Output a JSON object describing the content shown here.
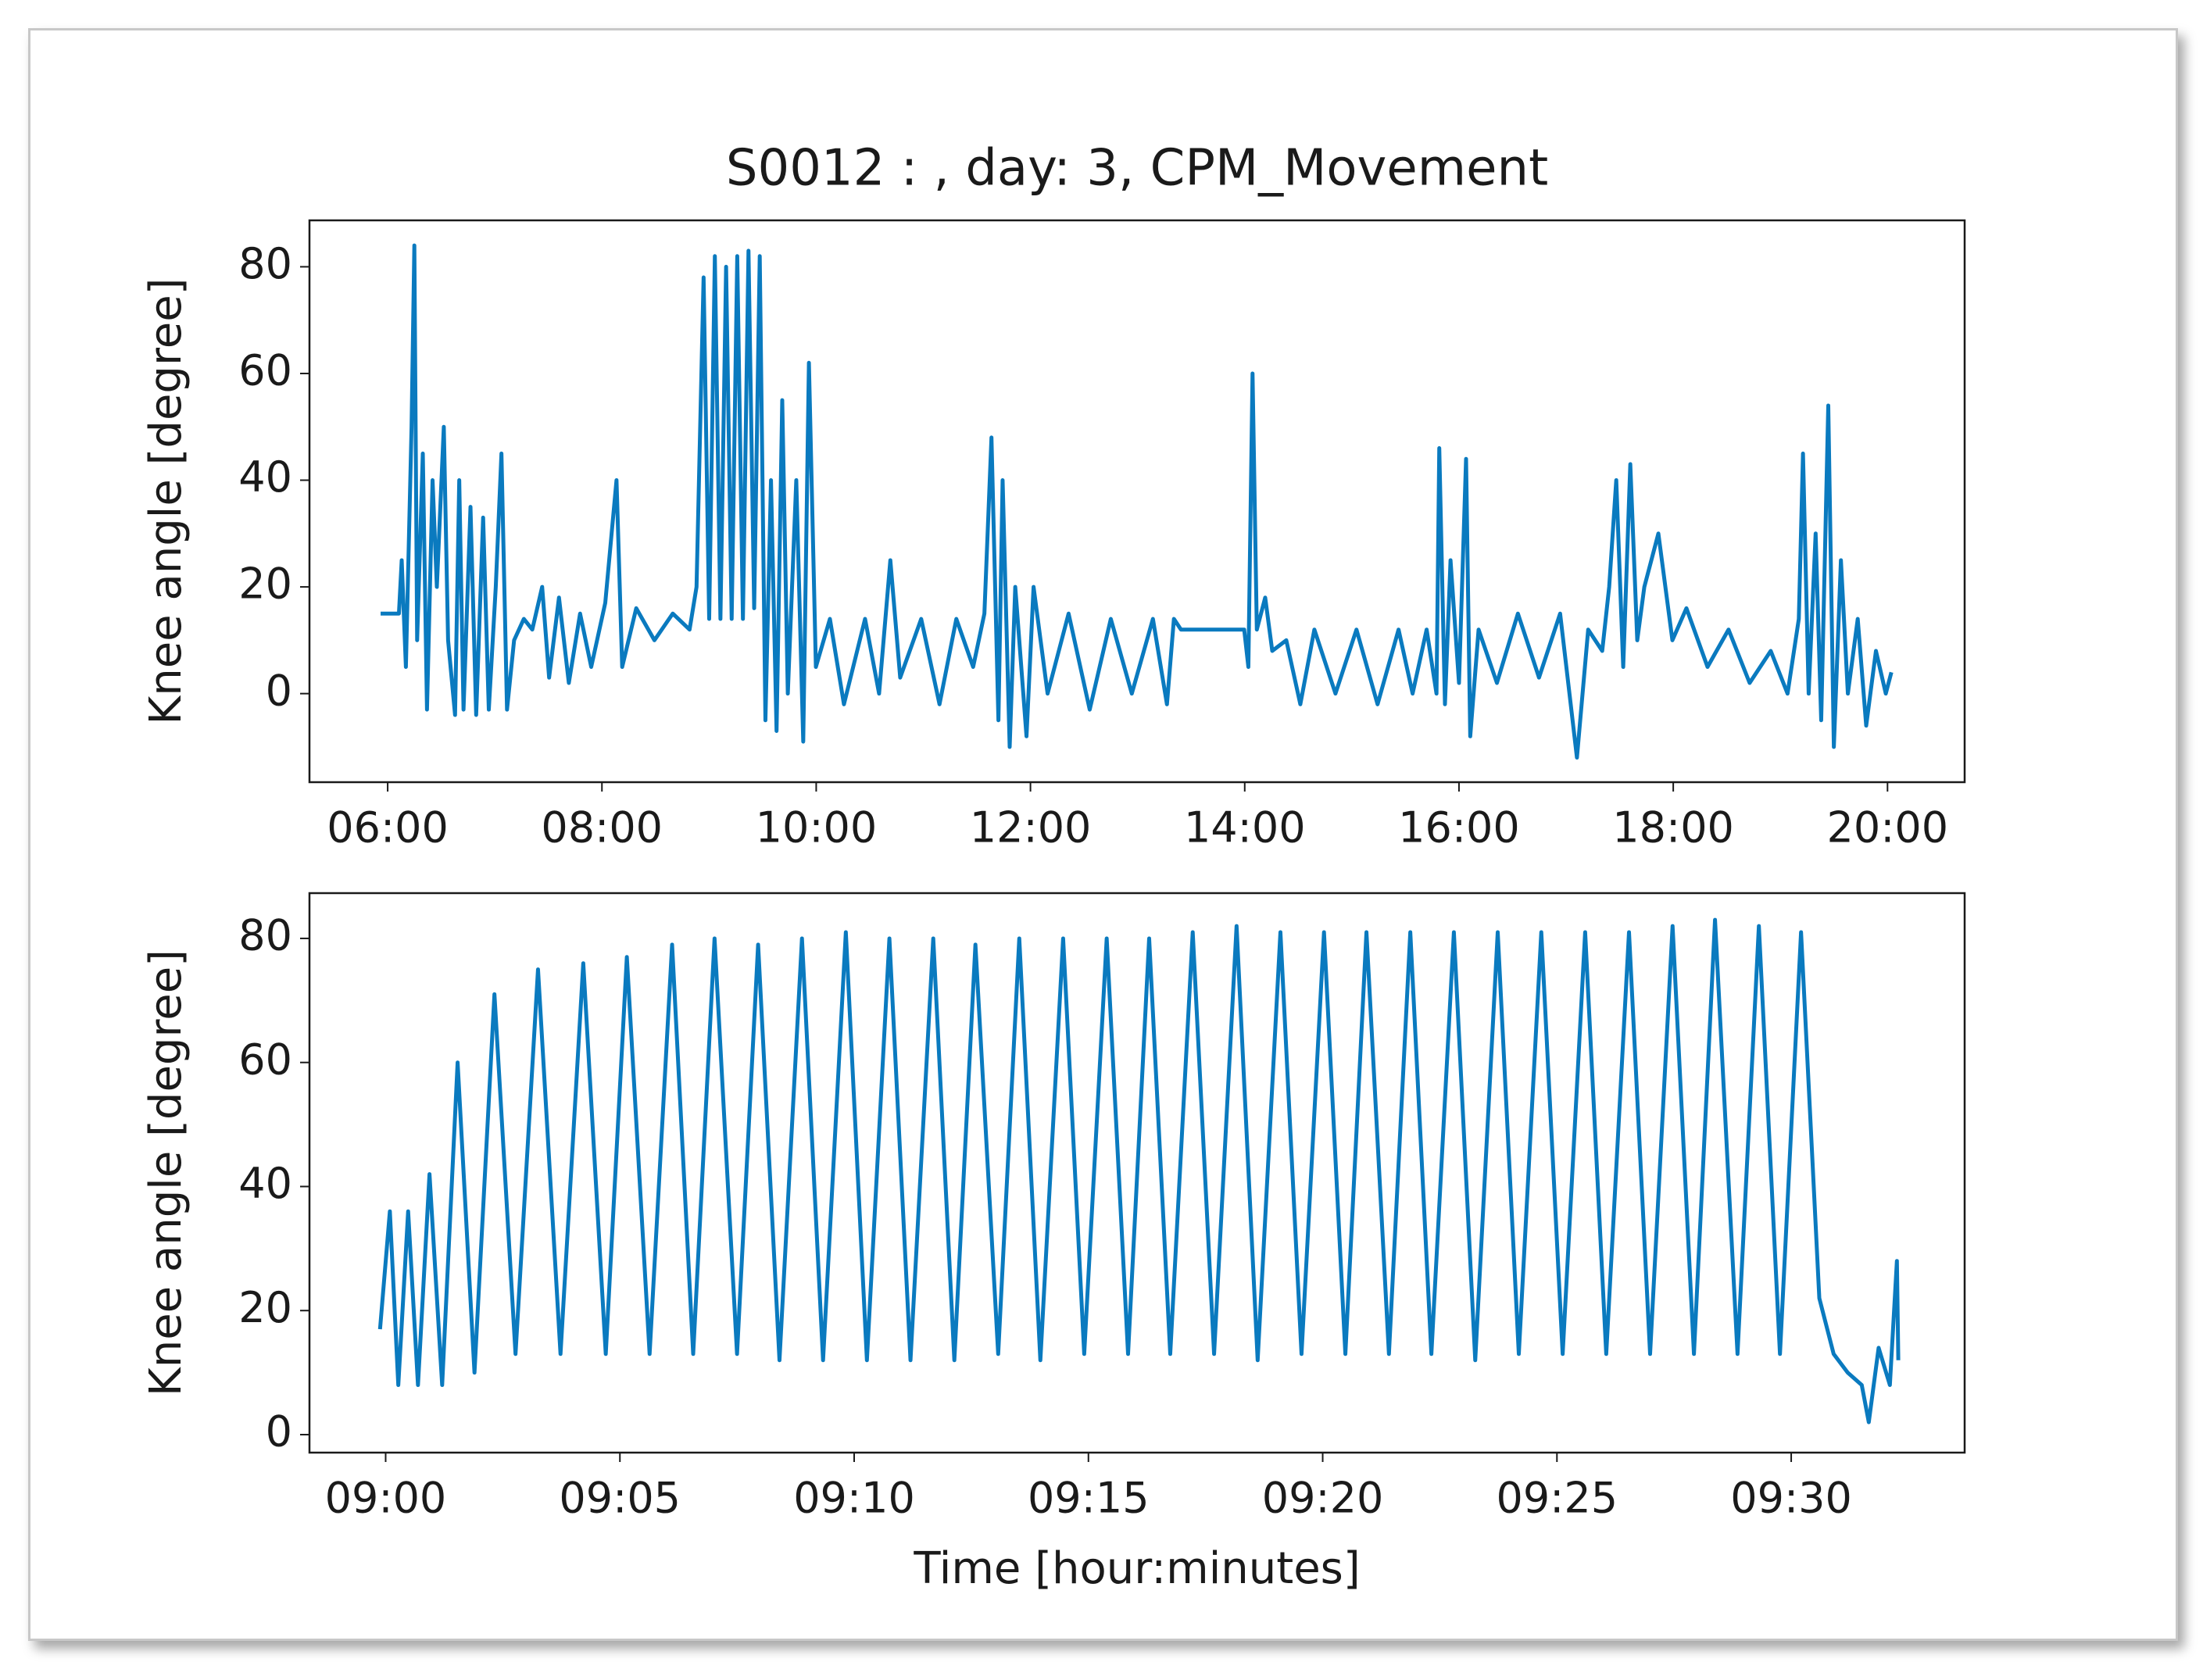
{
  "chart_data": [
    {
      "type": "line",
      "title": "S0012 : , day: 3, CPM_Movement",
      "y_label": "Knee angle [degree]",
      "xlim": [
        5.27,
        20.72
      ],
      "ylim": [
        -16.6,
        88.7
      ],
      "xticks": [
        {
          "value": 6,
          "label": "06:00"
        },
        {
          "value": 8,
          "label": "08:00"
        },
        {
          "value": 10,
          "label": "10:00"
        },
        {
          "value": 12,
          "label": "12:00"
        },
        {
          "value": 14,
          "label": "14:00"
        },
        {
          "value": 16,
          "label": "16:00"
        },
        {
          "value": 18,
          "label": "18:00"
        },
        {
          "value": 20,
          "label": "20:00"
        }
      ],
      "yticks": [
        0,
        20,
        40,
        60,
        80
      ],
      "series": [
        {
          "color": "#0a7abf",
          "x": [
            5.934,
            6.105,
            6.131,
            6.17,
            6.223,
            6.249,
            6.275,
            6.328,
            6.367,
            6.419,
            6.459,
            6.524,
            6.564,
            6.629,
            6.668,
            6.708,
            6.773,
            6.826,
            6.891,
            6.944,
            7.009,
            7.062,
            7.114,
            7.18,
            7.271,
            7.35,
            7.442,
            7.507,
            7.599,
            7.691,
            7.796,
            7.9,
            8.031,
            8.136,
            8.189,
            8.32,
            8.49,
            8.661,
            8.818,
            8.883,
            8.949,
            9.001,
            9.054,
            9.106,
            9.159,
            9.211,
            9.263,
            9.316,
            9.368,
            9.421,
            9.473,
            9.526,
            9.578,
            9.63,
            9.683,
            9.735,
            9.814,
            9.879,
            9.932,
            9.997,
            10.128,
            10.259,
            10.456,
            10.587,
            10.692,
            10.784,
            10.98,
            11.151,
            11.308,
            11.465,
            11.57,
            11.636,
            11.701,
            11.74,
            11.806,
            11.858,
            11.963,
            12.029,
            12.16,
            12.356,
            12.553,
            12.75,
            12.946,
            13.143,
            13.274,
            13.339,
            13.405,
            13.995,
            14.034,
            14.073,
            14.113,
            14.191,
            14.257,
            14.388,
            14.519,
            14.65,
            14.847,
            15.043,
            15.24,
            15.436,
            15.567,
            15.698,
            15.79,
            15.816,
            15.869,
            15.921,
            16.0,
            16.066,
            16.105,
            16.183,
            16.354,
            16.55,
            16.747,
            16.944,
            17.101,
            17.206,
            17.337,
            17.402,
            17.468,
            17.533,
            17.599,
            17.664,
            17.73,
            17.861,
            17.992,
            18.123,
            18.32,
            18.516,
            18.713,
            18.91,
            19.067,
            19.172,
            19.211,
            19.264,
            19.329,
            19.381,
            19.447,
            19.499,
            19.565,
            19.63,
            19.722,
            19.801,
            19.892,
            19.984,
            20.036
          ],
          "values": [
            15,
            15,
            25,
            5,
            50,
            84,
            10,
            45,
            -3,
            40,
            20,
            50,
            10,
            -4,
            40,
            -3,
            35,
            -4,
            33,
            -3,
            20,
            45,
            -3,
            10,
            14,
            12,
            20,
            3,
            18,
            2,
            15,
            5,
            17,
            40,
            5,
            16,
            10,
            15,
            12,
            20,
            78,
            14,
            82,
            14,
            80,
            14,
            82,
            14,
            83,
            16,
            82,
            -5,
            40,
            -7,
            55,
            0,
            40,
            -9,
            62,
            5,
            14,
            -2,
            14,
            0,
            25,
            3,
            14,
            -2,
            14,
            5,
            15,
            48,
            -5,
            40,
            -10,
            20,
            -8,
            20,
            0,
            15,
            -3,
            14,
            0,
            14,
            -2,
            14,
            12,
            12,
            5,
            60,
            12,
            18,
            8,
            10,
            -2,
            12,
            0,
            12,
            -2,
            12,
            0,
            12,
            0,
            46,
            -2,
            25,
            2,
            44,
            -8,
            12,
            2,
            15,
            3,
            15,
            -12,
            12,
            8,
            20,
            40,
            5,
            43,
            10,
            20,
            30,
            10,
            16,
            5,
            12,
            2,
            8,
            0,
            14,
            45,
            0,
            30,
            -5,
            54,
            -10,
            25,
            0,
            14,
            -6,
            8,
            0,
            4
          ]
        }
      ]
    },
    {
      "type": "line",
      "y_label": "Knee angle [degree]",
      "x_label": "Time [hour:minutes]",
      "xlim": [
        8.9729,
        9.5617
      ],
      "ylim": [
        -2.9,
        87.3
      ],
      "xticks": [
        {
          "value": 9.0,
          "label": "09:00"
        },
        {
          "value": 9.0833333,
          "label": "09:05"
        },
        {
          "value": 9.1666667,
          "label": "09:10"
        },
        {
          "value": 9.25,
          "label": "09:15"
        },
        {
          "value": 9.3333333,
          "label": "09:20"
        },
        {
          "value": 9.4166667,
          "label": "09:25"
        },
        {
          "value": 9.5,
          "label": "09:30"
        }
      ],
      "yticks": [
        0,
        20,
        40,
        60,
        80
      ],
      "series": [
        {
          "color": "#0a7abf",
          "x": [
            8.998,
            9.0015,
            9.0045,
            9.008,
            9.0115,
            9.0156,
            9.0201,
            9.0256,
            9.0316,
            9.0387,
            9.0462,
            9.0542,
            9.0622,
            9.0703,
            9.0783,
            9.0858,
            9.0939,
            9.1019,
            9.1094,
            9.117,
            9.125,
            9.1325,
            9.1401,
            9.1481,
            9.1556,
            9.1637,
            9.1712,
            9.1792,
            9.1867,
            9.1948,
            9.2023,
            9.2098,
            9.2179,
            9.2254,
            9.2329,
            9.241,
            9.2485,
            9.2565,
            9.2641,
            9.2716,
            9.2791,
            9.2871,
            9.2947,
            9.3027,
            9.3102,
            9.3183,
            9.3258,
            9.3338,
            9.3414,
            9.3489,
            9.3569,
            9.3645,
            9.372,
            9.38,
            9.3876,
            9.3956,
            9.4031,
            9.4111,
            9.4187,
            9.4267,
            9.4342,
            9.4423,
            9.4498,
            9.4578,
            9.4654,
            9.4729,
            9.4809,
            9.4885,
            9.496,
            9.5035,
            9.51,
            9.5151,
            9.5201,
            9.5251,
            9.5276,
            9.5311,
            9.5351,
            9.5376,
            9.5381
          ],
          "values": [
            17,
            36,
            8,
            36,
            8,
            42,
            8,
            60,
            10,
            71,
            13,
            75,
            13,
            76,
            13,
            77,
            13,
            79,
            13,
            80,
            13,
            79,
            12,
            80,
            12,
            81,
            12,
            80,
            12,
            80,
            12,
            79,
            13,
            80,
            12,
            80,
            13,
            80,
            13,
            80,
            13,
            81,
            13,
            82,
            12,
            81,
            13,
            81,
            13,
            81,
            13,
            81,
            13,
            81,
            12,
            81,
            13,
            81,
            13,
            81,
            13,
            81,
            13,
            82,
            13,
            83,
            13,
            82,
            13,
            81,
            22,
            13,
            10,
            8,
            2,
            14,
            8,
            28,
            12
          ]
        }
      ]
    }
  ]
}
